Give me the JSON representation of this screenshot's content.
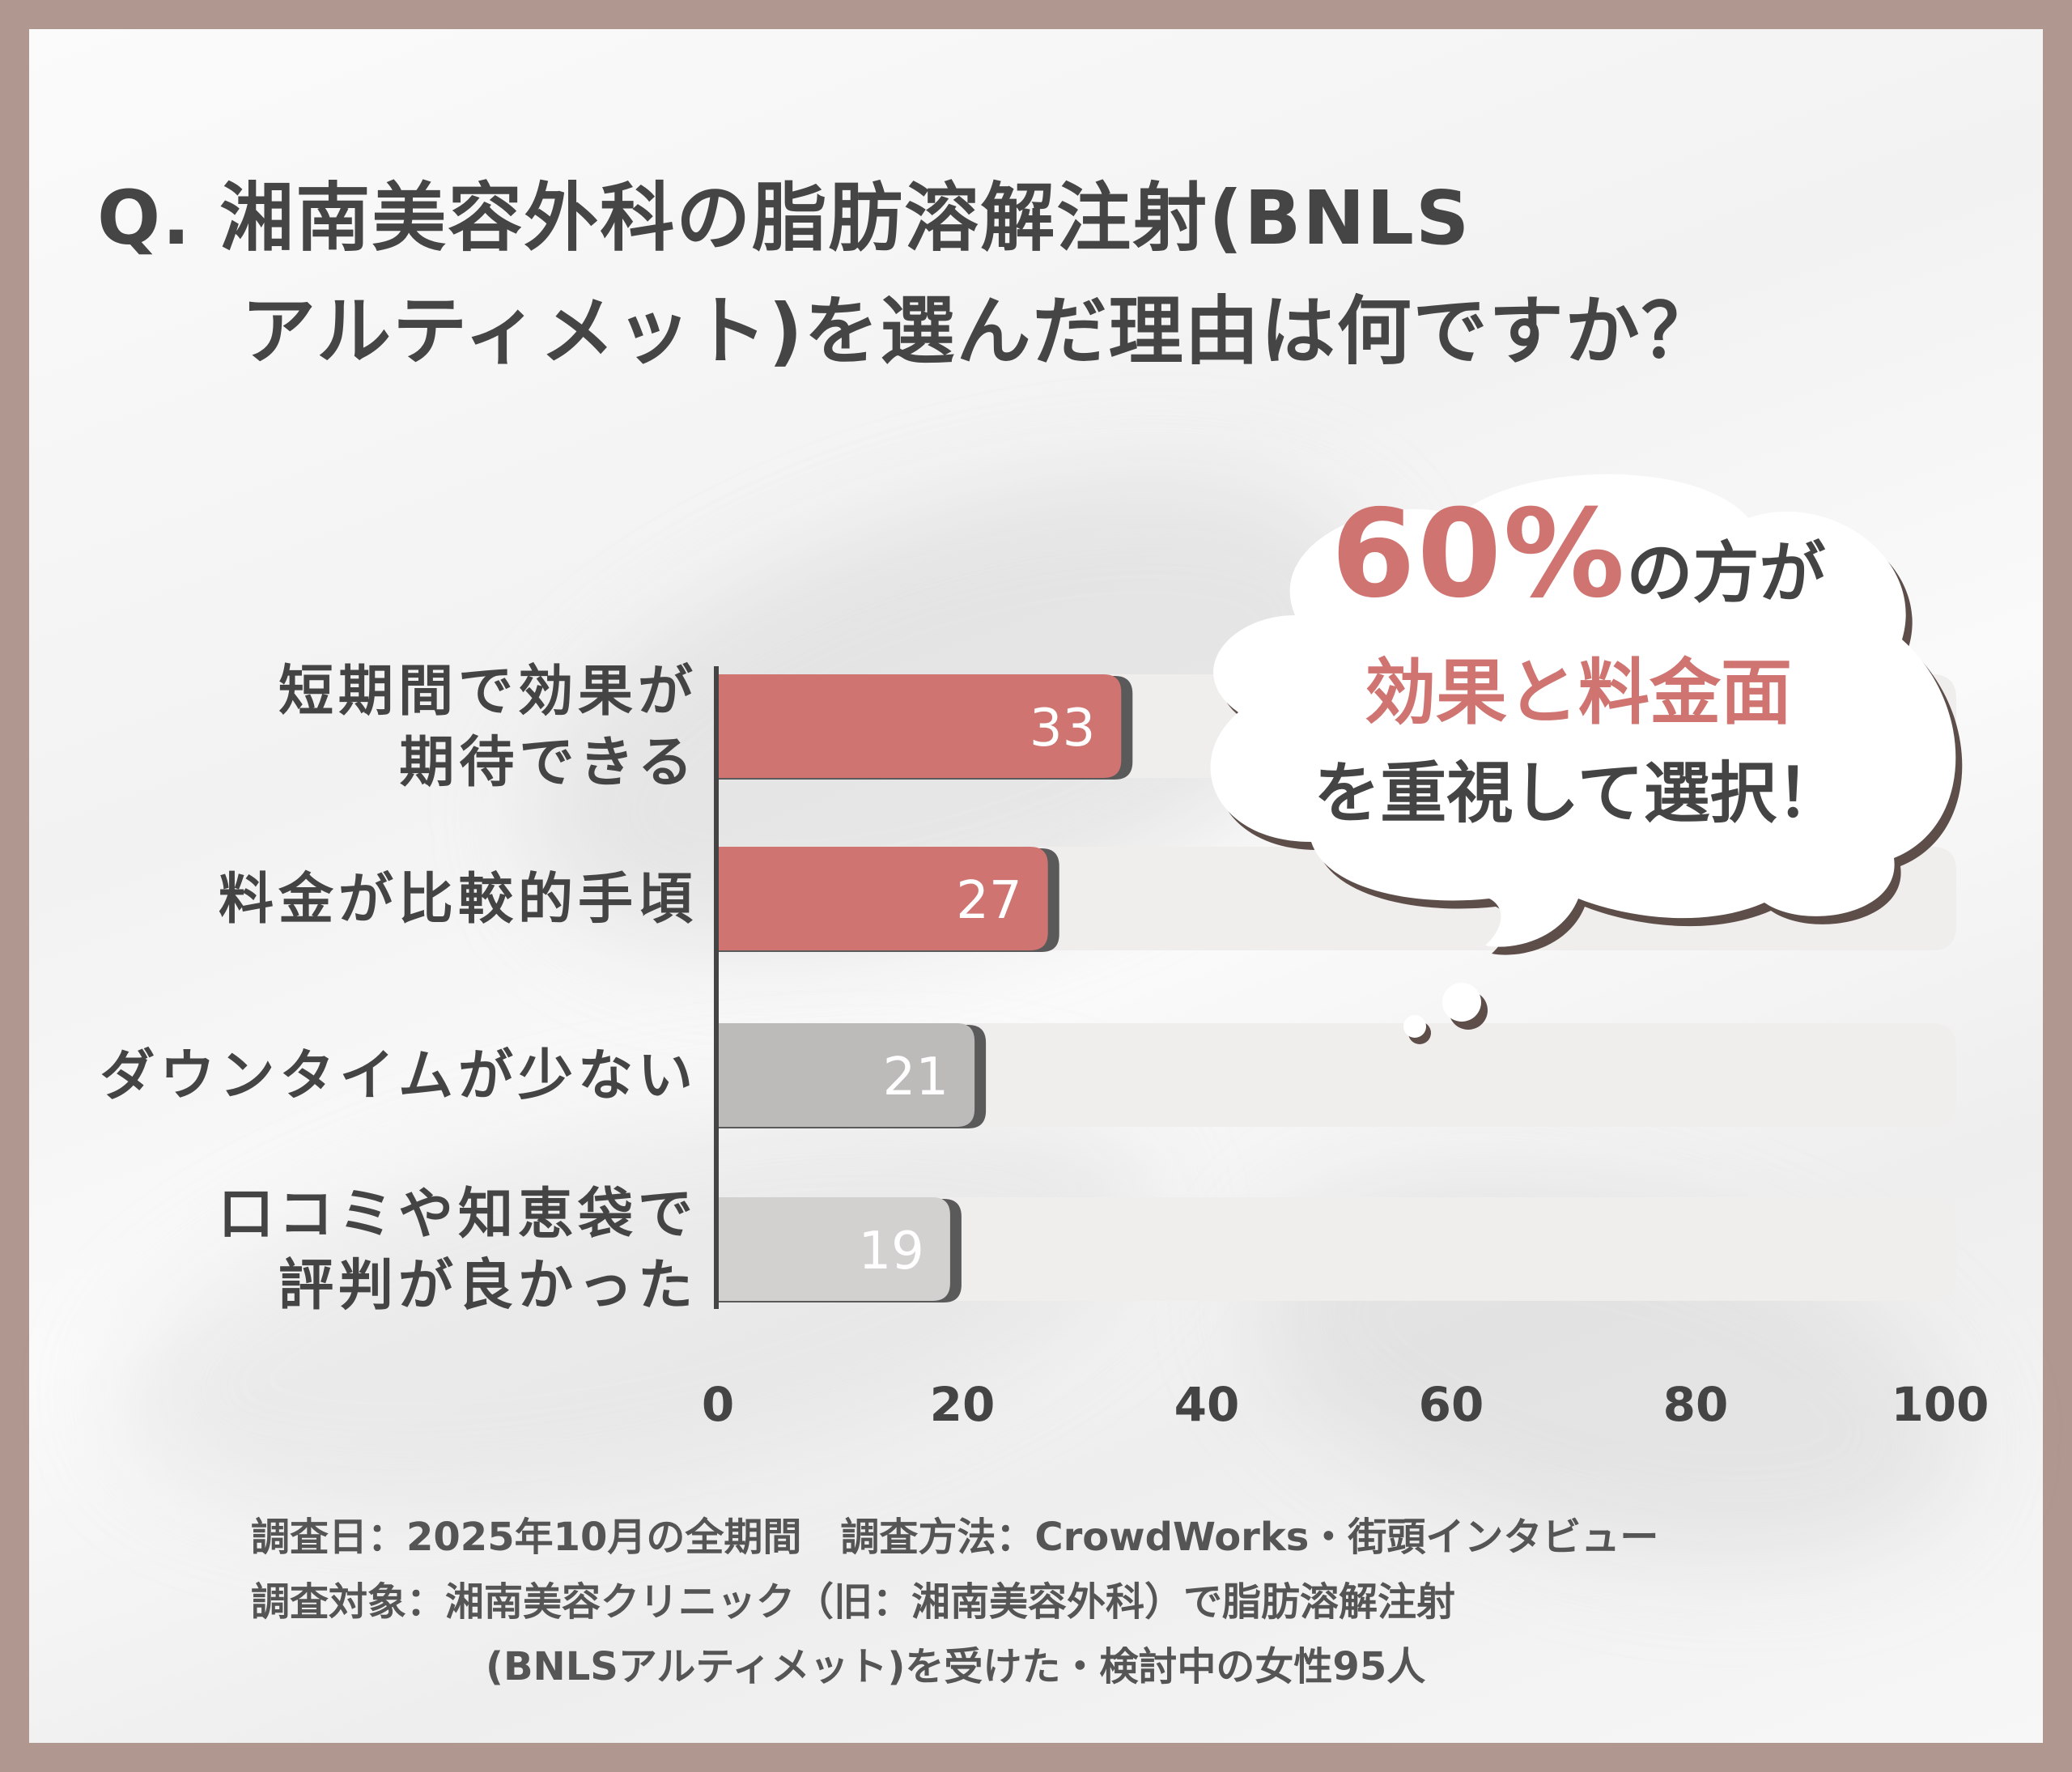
{
  "question": {
    "line1": "Q. 湘南美容外科の脂肪溶解注射(BNLS",
    "line2": "アルティメット)を選んだ理由は何ですか？"
  },
  "callout": {
    "percent": "60%",
    "line1_suffix": "の方が",
    "line2": "効果と料金面",
    "line3": "を重視して選択！"
  },
  "chart_data": {
    "type": "bar",
    "orientation": "horizontal",
    "categories": [
      [
        "短期間で効果が",
        "期待できる"
      ],
      [
        "料金が比較的手頃"
      ],
      [
        "ダウンタイムが少ない"
      ],
      [
        "口コミや知恵袋で",
        "評判が良かった"
      ]
    ],
    "values": [
      33,
      27,
      21,
      19
    ],
    "bar_colors": [
      "#cf7470",
      "#cf7470",
      "#bdbbba",
      "#d3d1d0"
    ],
    "xlim": [
      0,
      100
    ],
    "x_ticks": [
      "0",
      "20",
      "40",
      "60",
      "80",
      "100"
    ],
    "grid": false,
    "xlabel": "",
    "ylabel": ""
  },
  "footer": {
    "line1": "調査日：2025年10月の全期間　調査方法：CrowdWorks・街頭インタビュー",
    "line2": "調査対象：湘南美容クリニック（旧：湘南美容外科）で脂肪溶解注射",
    "line3": "(BNLSアルティメット)を受けた・検討中の女性95人"
  },
  "colors": {
    "frame": "#b09891",
    "accent": "#cf7470",
    "track": "#f0eded",
    "text": "#444444"
  }
}
